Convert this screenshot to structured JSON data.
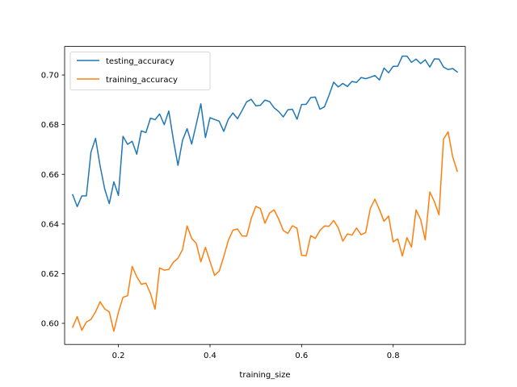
{
  "chart_data": {
    "type": "line",
    "title": "",
    "xlabel": "training_size",
    "ylabel": "",
    "xlim": [
      0.0825,
      0.9575
    ],
    "ylim": [
      0.5915,
      0.7115
    ],
    "xticks": [
      0.2,
      0.4,
      0.6,
      0.8
    ],
    "xtick_labels": [
      "0.2",
      "0.4",
      "0.6",
      "0.8"
    ],
    "yticks": [
      0.6,
      0.62,
      0.64,
      0.66,
      0.68,
      0.7
    ],
    "ytick_labels": [
      "0.60",
      "0.62",
      "0.64",
      "0.66",
      "0.68",
      "0.70"
    ],
    "grid": false,
    "legend_position": "upper-left",
    "x": [
      0.1,
      0.11,
      0.12,
      0.13,
      0.14,
      0.15,
      0.16,
      0.17,
      0.18,
      0.19,
      0.2,
      0.21,
      0.22,
      0.23,
      0.24,
      0.25,
      0.26,
      0.27,
      0.28,
      0.29,
      0.3,
      0.31,
      0.32,
      0.33,
      0.34,
      0.35,
      0.36,
      0.37,
      0.38,
      0.39,
      0.4,
      0.41,
      0.42,
      0.43,
      0.44,
      0.45,
      0.46,
      0.47,
      0.48,
      0.49,
      0.5,
      0.51,
      0.52,
      0.53,
      0.54,
      0.55,
      0.56,
      0.57,
      0.58,
      0.59,
      0.6,
      0.61,
      0.62,
      0.63,
      0.64,
      0.65,
      0.66,
      0.67,
      0.68,
      0.69,
      0.7,
      0.71,
      0.72,
      0.73,
      0.74,
      0.75,
      0.76,
      0.77,
      0.78,
      0.79,
      0.8,
      0.81,
      0.82,
      0.83,
      0.84,
      0.85,
      0.86,
      0.87,
      0.88,
      0.89,
      0.9,
      0.91,
      0.92,
      0.93,
      0.94
    ],
    "series": [
      {
        "name": "testing_accuracy",
        "color": "#1f77b4",
        "values": [
          0.6518,
          0.647,
          0.6513,
          0.6513,
          0.6689,
          0.6745,
          0.6634,
          0.6541,
          0.6482,
          0.657,
          0.6515,
          0.6753,
          0.6721,
          0.6733,
          0.6681,
          0.6775,
          0.6768,
          0.6826,
          0.682,
          0.6843,
          0.68,
          0.6855,
          0.6739,
          0.6636,
          0.6737,
          0.6784,
          0.6722,
          0.6802,
          0.6884,
          0.6748,
          0.6828,
          0.6821,
          0.6814,
          0.6773,
          0.6822,
          0.6847,
          0.6824,
          0.6857,
          0.6892,
          0.6902,
          0.6876,
          0.6878,
          0.6899,
          0.6893,
          0.6868,
          0.6853,
          0.6831,
          0.686,
          0.6862,
          0.6822,
          0.6881,
          0.6882,
          0.6909,
          0.6911,
          0.6862,
          0.6872,
          0.6919,
          0.6971,
          0.6952,
          0.6966,
          0.6954,
          0.6974,
          0.697,
          0.699,
          0.6985,
          0.6991,
          0.6998,
          0.698,
          0.7028,
          0.7009,
          0.7035,
          0.7035,
          0.7076,
          0.7076,
          0.7051,
          0.7064,
          0.7046,
          0.7061,
          0.7032,
          0.7065,
          0.7064,
          0.7032,
          0.7022,
          0.7026,
          0.7012
        ]
      },
      {
        "name": "training_accuracy",
        "color": "#ff7f0e",
        "values": [
          0.5984,
          0.6027,
          0.5972,
          0.6005,
          0.6016,
          0.6046,
          0.6087,
          0.6058,
          0.6046,
          0.5968,
          0.6045,
          0.6105,
          0.6111,
          0.6229,
          0.6188,
          0.6157,
          0.6162,
          0.612,
          0.6057,
          0.6223,
          0.6214,
          0.6217,
          0.6246,
          0.6262,
          0.6297,
          0.6392,
          0.6342,
          0.6322,
          0.6248,
          0.6306,
          0.6249,
          0.6193,
          0.621,
          0.6268,
          0.6334,
          0.6375,
          0.638,
          0.6352,
          0.6351,
          0.6422,
          0.6471,
          0.6462,
          0.6403,
          0.6444,
          0.6457,
          0.642,
          0.6374,
          0.6362,
          0.6393,
          0.6383,
          0.6274,
          0.6272,
          0.6353,
          0.6342,
          0.6374,
          0.6392,
          0.6391,
          0.6414,
          0.6385,
          0.6331,
          0.636,
          0.6355,
          0.6384,
          0.6357,
          0.6366,
          0.6462,
          0.65,
          0.6458,
          0.6411,
          0.6432,
          0.6328,
          0.634,
          0.6271,
          0.6345,
          0.6307,
          0.6457,
          0.6418,
          0.6336,
          0.6529,
          0.649,
          0.6437,
          0.6742,
          0.6771,
          0.667,
          0.6612
        ]
      }
    ]
  }
}
